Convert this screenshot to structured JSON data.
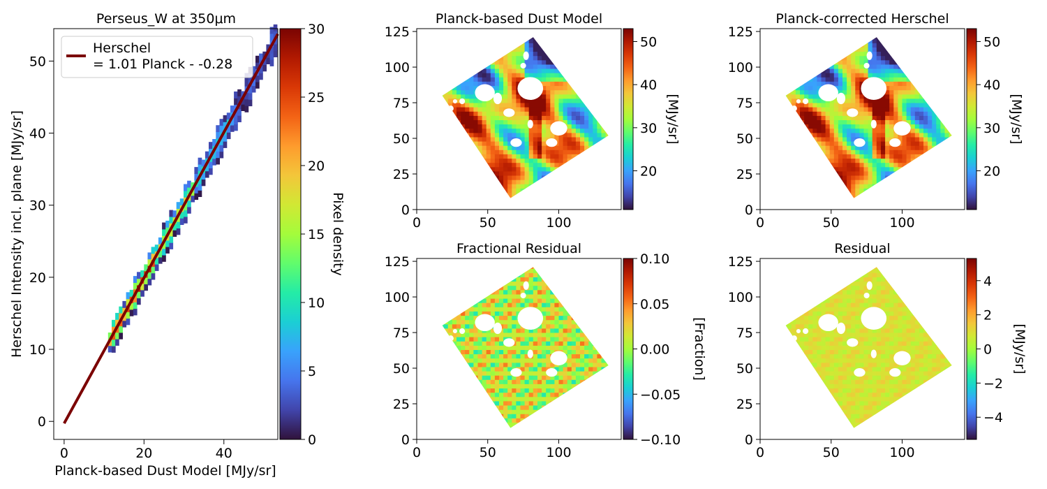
{
  "colors": {
    "fit_line": "#7b0000",
    "turbo_stops": [
      "#30123b",
      "#4145ab",
      "#4675ed",
      "#39a2fc",
      "#1bcfd4",
      "#24eca6",
      "#61fc6c",
      "#a4fc3b",
      "#d1e834",
      "#f3c63a",
      "#fe9b2d",
      "#f36315",
      "#d93806",
      "#b11901",
      "#7a0402"
    ]
  },
  "chart_data": [
    {
      "type": "heatmap",
      "subtype": "2d-histogram-with-fit",
      "title": "Perseus_W at 350μm",
      "xlabel": "Planck-based Dust Model [MJy/sr]",
      "ylabel": "Herschel Intensity incl. plane [MJy/sr]",
      "xlim": [
        -2.6,
        53.5
      ],
      "ylim": [
        -2.5,
        54.5
      ],
      "xticks": [
        "0",
        "20",
        "40"
      ],
      "yticks": [
        "0",
        "10",
        "20",
        "30",
        "40",
        "50"
      ],
      "colorbar": {
        "label": "Pixel density",
        "range": [
          0,
          30
        ],
        "ticks": [
          "0",
          "5",
          "10",
          "15",
          "20",
          "25",
          "30"
        ]
      },
      "legend": {
        "position": "top-left",
        "entries": [
          "Herschel\n= 1.01 Planck - -0.28"
        ]
      },
      "fit": {
        "slope": 1.01,
        "intercept": 0.28,
        "x_range": [
          0,
          53.5
        ]
      },
      "data_extent": {
        "x": [
          11,
          53
        ],
        "y": [
          12,
          55
        ]
      }
    },
    {
      "type": "heatmap",
      "title": "Planck-based Dust Model",
      "xticks": [
        "0",
        "50",
        "100"
      ],
      "yticks": [
        "0",
        "25",
        "50",
        "75",
        "100",
        "125"
      ],
      "xlim": [
        0,
        144
      ],
      "ylim": [
        0,
        127
      ],
      "map_corners": [
        [
          18,
          80
        ],
        [
          82,
          121
        ],
        [
          135,
          52
        ],
        [
          66,
          8
        ]
      ],
      "colorbar": {
        "label": "[MJy/sr]",
        "range": [
          11,
          53
        ],
        "ticks": [
          "20",
          "30",
          "40",
          "50"
        ]
      }
    },
    {
      "type": "heatmap",
      "title": "Planck-corrected Herschel",
      "xticks": [
        "0",
        "50",
        "100"
      ],
      "yticks": [
        "0",
        "25",
        "50",
        "75",
        "100",
        "125"
      ],
      "xlim": [
        0,
        144
      ],
      "ylim": [
        0,
        127
      ],
      "map_corners": [
        [
          18,
          80
        ],
        [
          82,
          121
        ],
        [
          135,
          52
        ],
        [
          66,
          8
        ]
      ],
      "colorbar": {
        "label": "[MJy/sr]",
        "range": [
          11,
          53
        ],
        "ticks": [
          "20",
          "30",
          "40",
          "50"
        ]
      }
    },
    {
      "type": "heatmap",
      "title": "Fractional Residual",
      "xticks": [
        "0",
        "50",
        "100"
      ],
      "yticks": [
        "0",
        "25",
        "50",
        "75",
        "100",
        "125"
      ],
      "xlim": [
        0,
        144
      ],
      "ylim": [
        0,
        127
      ],
      "map_corners": [
        [
          18,
          80
        ],
        [
          82,
          121
        ],
        [
          135,
          52
        ],
        [
          66,
          8
        ]
      ],
      "colorbar": {
        "label": "[Fraction]",
        "range": [
          -0.1,
          0.1
        ],
        "ticks": [
          "0.10",
          "0.05",
          "0.00",
          "−0.05",
          "−0.10"
        ]
      }
    },
    {
      "type": "heatmap",
      "title": "Residual",
      "xticks": [
        "0",
        "50",
        "100"
      ],
      "yticks": [
        "0",
        "25",
        "50",
        "75",
        "100",
        "125"
      ],
      "xlim": [
        0,
        144
      ],
      "ylim": [
        0,
        127
      ],
      "map_corners": [
        [
          18,
          80
        ],
        [
          82,
          121
        ],
        [
          135,
          52
        ],
        [
          66,
          8
        ]
      ],
      "colorbar": {
        "label": "[MJy/sr]",
        "range": [
          -5.3,
          5.3
        ],
        "ticks": [
          "4",
          "2",
          "0",
          "−2",
          "−4"
        ]
      }
    }
  ]
}
